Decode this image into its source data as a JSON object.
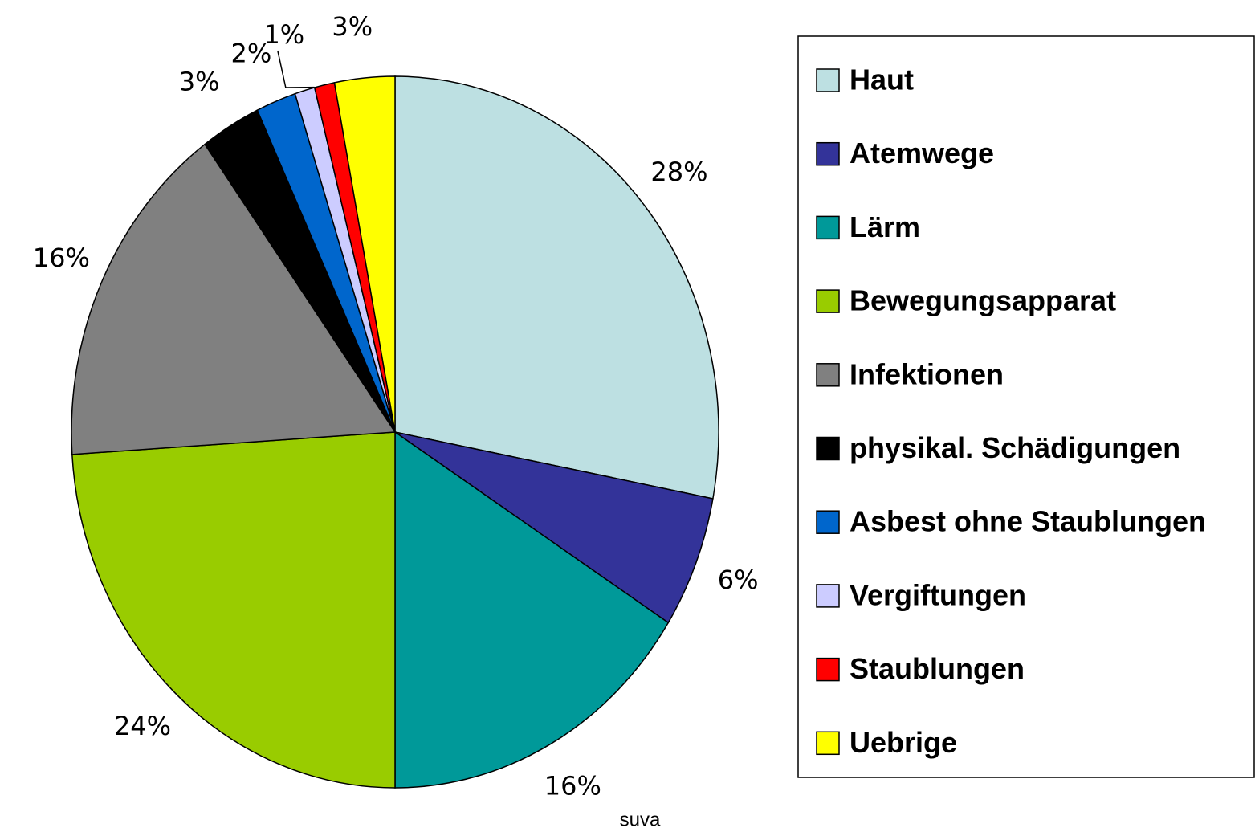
{
  "chart_data": {
    "type": "pie",
    "categories": [
      "Haut",
      "Atemwege",
      "Lärm",
      "Bewegungsapparat",
      "Infektionen",
      "physikal. Schädigungen",
      "Asbest ohne Staublungen",
      "Vergiftungen",
      "Staublungen",
      "Uebrige"
    ],
    "values": [
      28,
      6,
      16,
      24,
      16,
      3,
      2,
      1,
      1,
      3
    ],
    "value_labels": [
      "28%",
      "6%",
      "16%",
      "24%",
      "16%",
      "3%",
      "2%",
      "1%",
      null,
      "3%"
    ],
    "colors": [
      "#bde0e2",
      "#333399",
      "#009999",
      "#99cc00",
      "#808080",
      "#000000",
      "#0066cc",
      "#ccccff",
      "#ff0000",
      "#ffff00"
    ],
    "legend": "right",
    "annotation": "suva"
  }
}
